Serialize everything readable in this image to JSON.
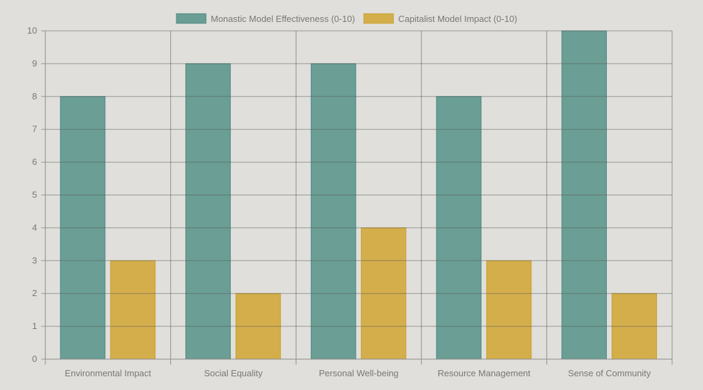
{
  "chart_data": {
    "type": "bar",
    "title": "",
    "xlabel": "",
    "ylabel": "",
    "categories": [
      "Environmental Impact",
      "Social Equality",
      "Personal Well-being",
      "Resource Management",
      "Sense of Community"
    ],
    "series": [
      {
        "name": "Monastic Model Effectiveness (0-10)",
        "values": [
          8,
          9,
          9,
          8,
          10
        ],
        "color": "#6b9e94",
        "border": "#4a8a80"
      },
      {
        "name": "Capitalist Model Impact (0-10)",
        "values": [
          3,
          2,
          4,
          3,
          2
        ],
        "color": "#d3ae4b",
        "border": "#c9a027"
      }
    ],
    "ylim": [
      0,
      10
    ],
    "yticks": [
      "0",
      "1",
      "2",
      "3",
      "4",
      "5",
      "6",
      "7",
      "8",
      "9",
      "10"
    ],
    "grid": true,
    "legend": "top-center"
  }
}
